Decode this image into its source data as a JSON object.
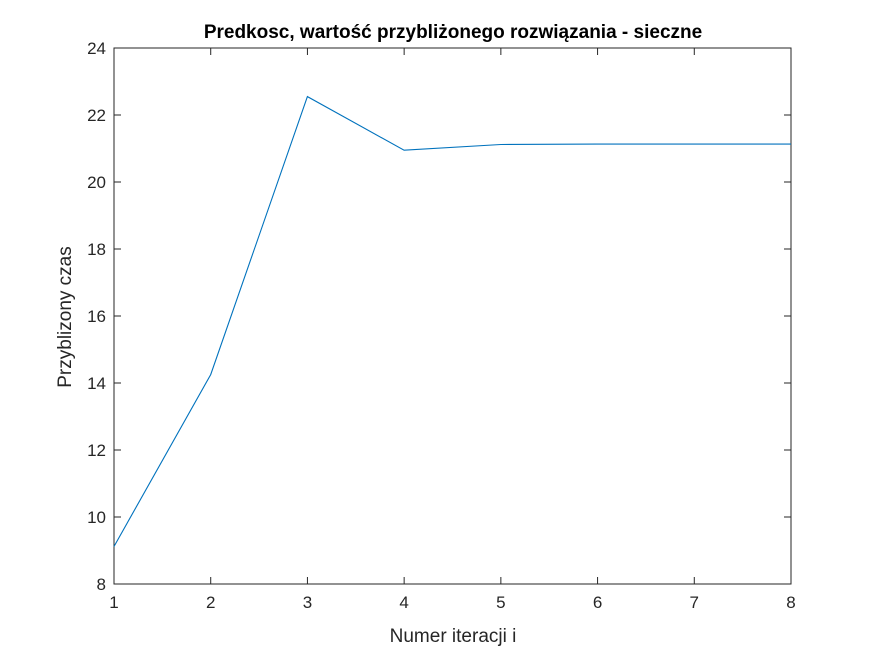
{
  "chart_data": {
    "type": "line",
    "title": "Predkosc, wartość przybliżonego rozwiązania - sieczne",
    "xlabel": "Numer iteracji i",
    "ylabel": "Przyblizony czas",
    "xlim": [
      1,
      8
    ],
    "ylim": [
      8,
      24
    ],
    "xticks": [
      1,
      2,
      3,
      4,
      5,
      6,
      7,
      8
    ],
    "yticks": [
      8,
      10,
      12,
      14,
      16,
      18,
      20,
      22,
      24
    ],
    "grid": false,
    "series": [
      {
        "color": "#0072BD",
        "x": [
          1,
          2,
          3,
          4,
          5,
          6,
          7,
          8
        ],
        "y": [
          9.12,
          14.25,
          22.55,
          20.95,
          21.12,
          21.13,
          21.13,
          21.13
        ]
      }
    ]
  }
}
